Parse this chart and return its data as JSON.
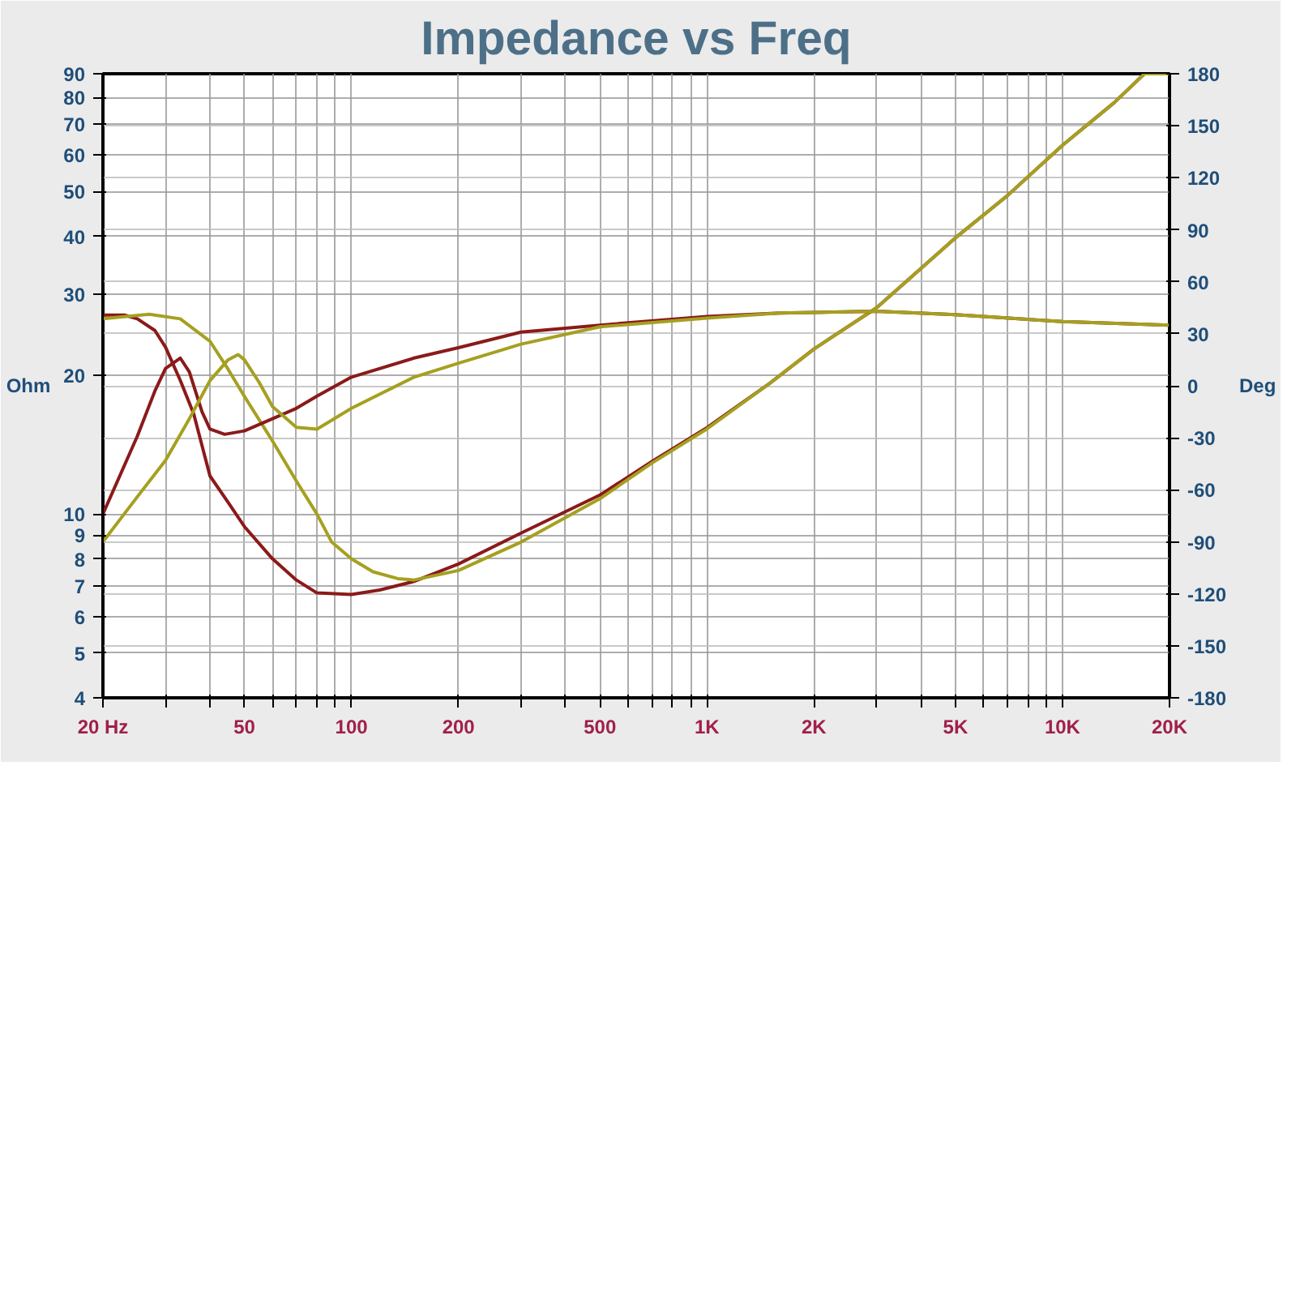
{
  "chart_data": {
    "type": "line",
    "title": "Impedance vs Freq",
    "ylabel": "Ohm",
    "y2label": "Deg",
    "log": "xy",
    "grid": true,
    "xlim": [
      20,
      20000
    ],
    "ylim": [
      4,
      90
    ],
    "y2lim": [
      -180,
      180
    ],
    "xticks": [
      {
        "value": 20,
        "label": "20 Hz"
      },
      {
        "value": 30,
        "label": null
      },
      {
        "value": 40,
        "label": null
      },
      50,
      {
        "value": 60,
        "label": null
      },
      {
        "value": 70,
        "label": null
      },
      {
        "value": 80,
        "label": null
      },
      {
        "value": 90,
        "label": null
      },
      100,
      200,
      {
        "value": 300,
        "label": null
      },
      {
        "value": 400,
        "label": null
      },
      500,
      {
        "value": 600,
        "label": null
      },
      {
        "value": 700,
        "label": null
      },
      {
        "value": 800,
        "label": null
      },
      {
        "value": 900,
        "label": null
      },
      {
        "value": 1000,
        "label": "1K"
      },
      {
        "value": 2000,
        "label": "2K"
      },
      {
        "value": 3000,
        "label": null
      },
      {
        "value": 4000,
        "label": null
      },
      {
        "value": 5000,
        "label": "5K"
      },
      {
        "value": 6000,
        "label": null
      },
      {
        "value": 7000,
        "label": null
      },
      {
        "value": 8000,
        "label": null
      },
      {
        "value": 9000,
        "label": null
      },
      {
        "value": 10000,
        "label": "10K"
      },
      {
        "value": 20000,
        "label": "20K"
      }
    ],
    "yticks": [
      4,
      5,
      6,
      7,
      8,
      9,
      10,
      20,
      30,
      40,
      50,
      60,
      70,
      80,
      90
    ],
    "y2ticks": [
      -180,
      -150,
      -120,
      -90,
      -60,
      -30,
      0,
      30,
      60,
      90,
      120,
      150,
      180
    ],
    "series": [
      {
        "color": "#8b1a1a",
        "x": [
          20,
          23,
          25,
          28,
          30,
          33,
          36,
          40,
          45,
          50,
          60,
          70,
          80,
          100,
          120,
          150,
          200,
          300,
          500,
          700,
          1000,
          1500,
          2000,
          3000,
          5000,
          7000,
          10000,
          14000,
          17000,
          20000
        ],
        "values": [
          27,
          27,
          26.5,
          25,
          23,
          19.5,
          16.5,
          12.1,
          10.6,
          9.4,
          8.0,
          7.2,
          6.75,
          6.7,
          6.85,
          7.15,
          7.8,
          9.1,
          11.0,
          13,
          15.4,
          19.2,
          22.8,
          28,
          39.7,
          49,
          63,
          78,
          90,
          90
        ]
      },
      {
        "color": "#a5a020",
        "x": [
          20,
          27,
          33,
          40,
          45,
          50,
          60,
          70,
          80,
          88,
          100,
          115,
          135,
          150,
          200,
          300,
          500,
          700,
          1000,
          1500,
          2000,
          3000,
          5000,
          7000,
          10000,
          14000,
          17000,
          20000
        ],
        "values": [
          26.5,
          27.1,
          26.5,
          23.7,
          20.6,
          18,
          14.4,
          11.8,
          10,
          8.7,
          8.0,
          7.5,
          7.25,
          7.2,
          7.55,
          8.7,
          10.8,
          12.9,
          15.3,
          19.2,
          22.8,
          28,
          39.7,
          49,
          63,
          78,
          90,
          90
        ]
      },
      {
        "color": "#8b1a1a",
        "axis": "y2",
        "x": [
          20,
          25,
          28,
          30,
          33,
          35,
          38,
          40,
          44,
          50,
          60,
          70,
          80,
          100,
          150,
          200,
          300,
          500,
          1000,
          1600,
          3000,
          5000,
          10000,
          20000
        ],
        "values": [
          -74,
          -29,
          -3,
          10,
          16,
          8,
          -15,
          -25,
          -28,
          -26,
          -19,
          -13,
          -6,
          5,
          16,
          22,
          31,
          35,
          40,
          42,
          43,
          41,
          37,
          35
        ]
      },
      {
        "color": "#a5a020",
        "axis": "y2",
        "x": [
          20,
          25,
          30,
          35,
          40,
          45,
          48,
          50,
          55,
          60,
          70,
          80,
          100,
          150,
          200,
          300,
          500,
          1000,
          1600,
          3000,
          5000,
          10000,
          20000
        ],
        "values": [
          -90,
          -64,
          -43,
          -19,
          3,
          15,
          18,
          15,
          2,
          -12,
          -24,
          -25,
          -13,
          5,
          13,
          24,
          34,
          39,
          42,
          43,
          41,
          37,
          35
        ]
      }
    ]
  }
}
